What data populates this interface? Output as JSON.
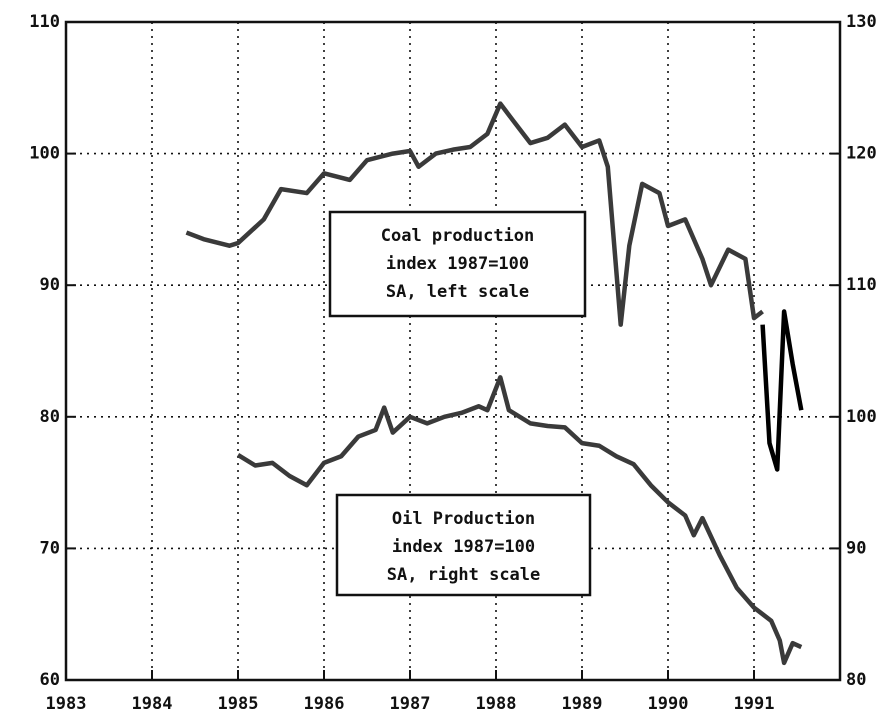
{
  "chart_data": {
    "type": "line",
    "xlim": [
      1983,
      1992
    ],
    "xticks": [
      1983,
      1984,
      1985,
      1986,
      1987,
      1988,
      1989,
      1990,
      1991
    ],
    "ylim": [
      60,
      110
    ],
    "yticks": [
      60,
      70,
      80,
      90,
      100,
      110
    ],
    "y2lim": [
      80,
      130
    ],
    "y2ticks": [
      80,
      90,
      100,
      110,
      120,
      130
    ],
    "grid": true,
    "annotations": [
      [
        "Coal production",
        "index 1987=100",
        "SA, left scale"
      ],
      [
        "Oil Production",
        "index 1987=100",
        "SA, right scale"
      ]
    ],
    "series": [
      {
        "color": "#3a3a3a",
        "axis": "y",
        "x": [
          1984.4,
          1984.6,
          1984.9,
          1985.0,
          1985.3,
          1985.5,
          1985.8,
          1986.0,
          1986.3,
          1986.5,
          1986.8,
          1987.0,
          1987.1,
          1987.3,
          1987.5,
          1987.7,
          1987.9,
          1988.05,
          1988.2,
          1988.4,
          1988.6,
          1988.8,
          1989.0,
          1989.2,
          1989.3,
          1989.45,
          1989.55,
          1989.7,
          1989.9,
          1990.0,
          1990.2,
          1990.4,
          1990.5,
          1990.7,
          1990.9,
          1991.0,
          1991.1
        ],
        "values": [
          94,
          93.5,
          93,
          93.2,
          95,
          97.3,
          97,
          98.5,
          98,
          99.5,
          100,
          100.2,
          99,
          100,
          100.3,
          100.5,
          101.5,
          103.8,
          102.5,
          100.8,
          101.2,
          102.2,
          100.5,
          101,
          99,
          87,
          93,
          97.7,
          97,
          94.5,
          95,
          92,
          90,
          92.7,
          92,
          87.5,
          88
        ]
      },
      {
        "color": "#000000",
        "axis": "y",
        "x": [
          1991.1,
          1991.18,
          1991.27,
          1991.35,
          1991.45,
          1991.55
        ],
        "values": [
          87,
          78,
          76,
          88,
          84,
          80.5
        ]
      },
      {
        "color": "#3a3a3a",
        "axis": "y2",
        "x": [
          1985.0,
          1985.2,
          1985.4,
          1985.6,
          1985.8,
          1986.0,
          1986.2,
          1986.4,
          1986.6,
          1986.7,
          1986.8,
          1987.0,
          1987.2,
          1987.4,
          1987.6,
          1987.8,
          1987.9,
          1988.05,
          1988.15,
          1988.4,
          1988.6,
          1988.8,
          1989.0,
          1989.2,
          1989.4,
          1989.6,
          1989.8,
          1990.0,
          1990.2,
          1990.3,
          1990.4,
          1990.6,
          1990.8,
          1991.0,
          1991.2,
          1991.3,
          1991.35,
          1991.45,
          1991.55
        ],
        "values": [
          97.1,
          96.3,
          96.5,
          95.5,
          94.8,
          96.5,
          97,
          98.5,
          99,
          100.7,
          98.8,
          100,
          99.5,
          100,
          100.3,
          100.8,
          100.5,
          103,
          100.5,
          99.5,
          99.3,
          99.2,
          98,
          97.8,
          97,
          96.4,
          94.8,
          93.5,
          92.5,
          91,
          92.3,
          89.5,
          87,
          85.5,
          84.5,
          83,
          81.3,
          82.8,
          82.5
        ]
      }
    ]
  }
}
